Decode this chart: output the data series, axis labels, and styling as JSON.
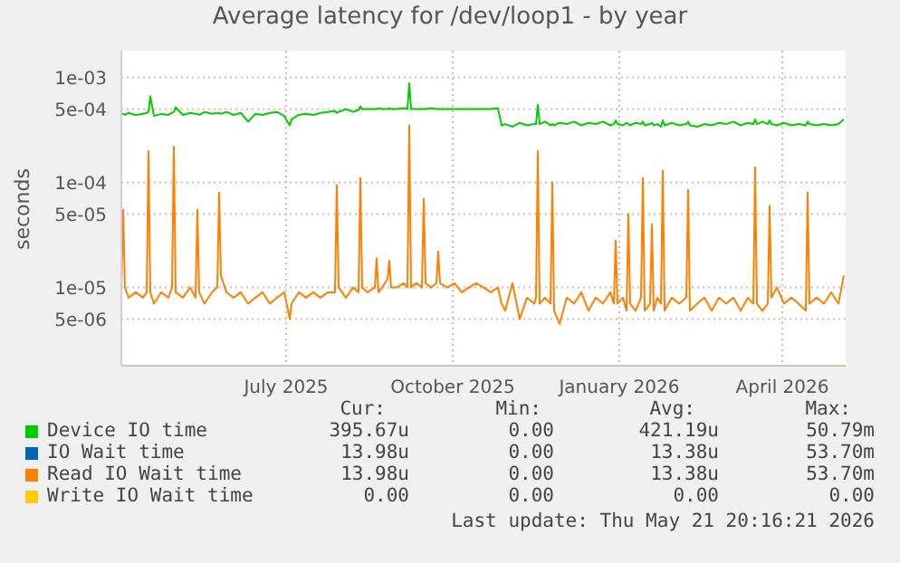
{
  "chart_data": {
    "type": "line",
    "title": "Average latency for /dev/loop1 - by year",
    "ylabel": "seconds",
    "log": "y",
    "grid": true,
    "legend": "bottom",
    "marker": "none",
    "line_style": "solid",
    "xlim": [
      "2025-04-16",
      "2026-05-21"
    ],
    "xticks": [
      {
        "value": "2025-07-16",
        "label": "July 2025"
      },
      {
        "value": "2025-10-16",
        "label": "October 2025"
      },
      {
        "value": "2026-01-16",
        "label": "January 2026"
      },
      {
        "value": "2026-04-16",
        "label": "April 2026"
      }
    ],
    "ylim": [
      1.8e-06,
      0.0018
    ],
    "yticks": [
      {
        "value": 5e-06,
        "label": "5e-06"
      },
      {
        "value": 1e-05,
        "label": "1e-05"
      },
      {
        "value": 5e-05,
        "label": "5e-05"
      },
      {
        "value": 0.0001,
        "label": "1e-04"
      },
      {
        "value": 0.0005,
        "label": "5e-04"
      },
      {
        "value": 0.001,
        "label": "1e-03"
      }
    ],
    "x": [
      "2025-04-16",
      "2025-04-17",
      "2025-04-18",
      "2025-04-20",
      "2025-04-24",
      "2025-04-28",
      "2025-04-30",
      "2025-05-01",
      "2025-05-02",
      "2025-05-04",
      "2025-05-08",
      "2025-05-12",
      "2025-05-14",
      "2025-05-15",
      "2025-05-16",
      "2025-05-20",
      "2025-05-24",
      "2025-05-27",
      "2025-05-28",
      "2025-05-29",
      "2025-06-01",
      "2025-06-05",
      "2025-06-08",
      "2025-06-09",
      "2025-06-10",
      "2025-06-13",
      "2025-06-17",
      "2025-06-21",
      "2025-06-25",
      "2025-06-29",
      "2025-07-03",
      "2025-07-07",
      "2025-07-11",
      "2025-07-15",
      "2025-07-18",
      "2025-07-19",
      "2025-07-23",
      "2025-07-27",
      "2025-07-31",
      "2025-08-04",
      "2025-08-08",
      "2025-08-12",
      "2025-08-13",
      "2025-08-14",
      "2025-08-18",
      "2025-08-22",
      "2025-08-25",
      "2025-08-26",
      "2025-08-27",
      "2025-08-30",
      "2025-09-03",
      "2025-09-04",
      "2025-09-05",
      "2025-09-07",
      "2025-09-10",
      "2025-09-11",
      "2025-09-12",
      "2025-09-15",
      "2025-09-19",
      "2025-09-21",
      "2025-09-22",
      "2025-09-23",
      "2025-09-26",
      "2025-09-29",
      "2025-09-30",
      "2025-10-01",
      "2025-10-04",
      "2025-10-07",
      "2025-10-08",
      "2025-10-09",
      "2025-10-13",
      "2025-10-17",
      "2025-10-21",
      "2025-10-25",
      "2025-10-29",
      "2025-11-02",
      "2025-11-06",
      "2025-11-10",
      "2025-11-12",
      "2025-11-14",
      "2025-11-18",
      "2025-11-22",
      "2025-11-26",
      "2025-11-30",
      "2025-12-01",
      "2025-12-02",
      "2025-12-03",
      "2025-12-06",
      "2025-12-09",
      "2025-12-10",
      "2025-12-11",
      "2025-12-14",
      "2025-12-18",
      "2025-12-22",
      "2025-12-26",
      "2025-12-30",
      "2026-01-03",
      "2026-01-07",
      "2026-01-11",
      "2026-01-13",
      "2026-01-14",
      "2026-01-15",
      "2026-01-18",
      "2026-01-20",
      "2026-01-21",
      "2026-01-22",
      "2026-01-25",
      "2026-01-28",
      "2026-01-29",
      "2026-01-30",
      "2026-02-02",
      "2026-02-03",
      "2026-02-04",
      "2026-02-06",
      "2026-02-08",
      "2026-02-09",
      "2026-02-10",
      "2026-02-14",
      "2026-02-18",
      "2026-02-22",
      "2026-02-23",
      "2026-02-24",
      "2026-02-28",
      "2026-03-04",
      "2026-03-08",
      "2026-03-12",
      "2026-03-16",
      "2026-03-20",
      "2026-03-24",
      "2026-03-28",
      "2026-03-31",
      "2026-04-01",
      "2026-04-02",
      "2026-04-05",
      "2026-04-08",
      "2026-04-09",
      "2026-04-10",
      "2026-04-13",
      "2026-04-17",
      "2026-04-21",
      "2026-04-25",
      "2026-04-29",
      "2026-04-30",
      "2026-05-01",
      "2026-05-05",
      "2026-05-09",
      "2026-05-13",
      "2026-05-17",
      "2026-05-20"
    ],
    "series": [
      {
        "name": "Device IO time",
        "color": "#00cc00",
        "values": [
          0.00045,
          0.00045,
          0.00044,
          0.00046,
          0.00044,
          0.00045,
          0.00046,
          0.00047,
          0.00066,
          0.00043,
          0.00045,
          0.00044,
          0.00046,
          0.00047,
          0.00052,
          0.00044,
          0.00046,
          0.00045,
          0.00045,
          0.00044,
          0.00047,
          0.00045,
          0.00046,
          0.00046,
          0.00045,
          0.00047,
          0.00044,
          0.00046,
          0.00038,
          0.00045,
          0.00044,
          0.00046,
          0.00047,
          0.00043,
          0.00035,
          0.0004,
          0.00044,
          0.00045,
          0.00044,
          0.00046,
          0.00047,
          0.00048,
          0.00046,
          0.00047,
          0.0005,
          0.00047,
          0.00049,
          0.00053,
          0.0005,
          0.0005,
          0.0005,
          0.0005,
          0.00051,
          0.0005,
          0.0005,
          0.00051,
          0.0005,
          0.0005,
          0.00051,
          0.0005,
          0.00088,
          0.0005,
          0.0005,
          0.0005,
          0.0005,
          0.0005,
          0.00051,
          0.0005,
          0.0005,
          0.0005,
          0.0005,
          0.0005,
          0.0005,
          0.0005,
          0.0005,
          0.0005,
          0.0005,
          0.00051,
          0.00035,
          0.00036,
          0.00034,
          0.00037,
          0.00035,
          0.00036,
          0.00036,
          0.00055,
          0.00036,
          0.00038,
          0.00035,
          0.00036,
          0.00035,
          0.00037,
          0.00036,
          0.00038,
          0.00035,
          0.00037,
          0.00036,
          0.00038,
          0.00035,
          0.00036,
          0.00039,
          0.00036,
          0.00035,
          0.00037,
          0.00036,
          0.00035,
          0.00037,
          0.00036,
          0.00038,
          0.00035,
          0.00036,
          0.00037,
          0.00035,
          0.00036,
          0.00034,
          0.00039,
          0.00035,
          0.00037,
          0.00035,
          0.00036,
          0.00038,
          0.00035,
          0.00034,
          0.00036,
          0.00035,
          0.00037,
          0.00036,
          0.00038,
          0.00035,
          0.00037,
          0.00036,
          0.0004,
          0.00036,
          0.00038,
          0.00036,
          0.00039,
          0.00036,
          0.00035,
          0.00037,
          0.00035,
          0.00036,
          0.00035,
          0.00038,
          0.00036,
          0.00035,
          0.00036,
          0.00035,
          0.00036,
          0.0004
        ]
      },
      {
        "name": "IO Wait time",
        "color": "#0066b3",
        "values": [
          null,
          null,
          null,
          null,
          null,
          null,
          null,
          null,
          null,
          null,
          null,
          null,
          null,
          null,
          null,
          null,
          null,
          null,
          null,
          null,
          null,
          null,
          null,
          null,
          null,
          null,
          null,
          null,
          null,
          null,
          null,
          null,
          null,
          null,
          null,
          null,
          null,
          null,
          null,
          null,
          null,
          null,
          null,
          null,
          null,
          null,
          null,
          null,
          null,
          null,
          null,
          null,
          null,
          null,
          null,
          null,
          null,
          null,
          null,
          null,
          null,
          null,
          null,
          null,
          null,
          null,
          null,
          null,
          null,
          null,
          null,
          null,
          null,
          null,
          null,
          null,
          null,
          null,
          null,
          null,
          null,
          null,
          null,
          null,
          null,
          null,
          null,
          null,
          null,
          null,
          null,
          null,
          null,
          null,
          null,
          null,
          null,
          null,
          null,
          null,
          null,
          null,
          null,
          null,
          null,
          null,
          null,
          null,
          null,
          null,
          null,
          null,
          null,
          null,
          null,
          null,
          null,
          null,
          null,
          null,
          null,
          null,
          null,
          null,
          null,
          null,
          null,
          null,
          null,
          null,
          null,
          null,
          null,
          null,
          null,
          null,
          null,
          null,
          null,
          null,
          null,
          null,
          null,
          null,
          null,
          null,
          null,
          null,
          null
        ]
      },
      {
        "name": "Read IO Wait time",
        "color": "#ff8000",
        "values": [
          9e-06,
          5.5e-05,
          1e-05,
          8e-06,
          9e-06,
          8e-06,
          9e-06,
          0.0002,
          9e-06,
          7e-06,
          9e-06,
          8e-06,
          1e-05,
          0.00022,
          9e-06,
          8e-06,
          1e-05,
          8e-06,
          5.5e-05,
          9e-06,
          7e-06,
          9e-06,
          1e-05,
          8e-05,
          1.3e-05,
          9e-06,
          8e-06,
          9e-06,
          7e-06,
          8e-06,
          9e-06,
          7e-06,
          8e-06,
          9e-06,
          5e-06,
          7e-06,
          9e-06,
          8e-06,
          9e-06,
          8e-06,
          9e-06,
          9e-06,
          9.5e-05,
          1e-05,
          8e-06,
          1e-05,
          9e-06,
          0.00011,
          1e-05,
          9e-06,
          1e-05,
          1.9e-05,
          9e-06,
          1e-05,
          1.2e-05,
          1.8e-05,
          1e-05,
          1e-05,
          1.1e-05,
          1e-05,
          0.00035,
          1e-05,
          1.1e-05,
          1e-05,
          7e-05,
          1.1e-05,
          1e-05,
          1.1e-05,
          2.2e-05,
          1.1e-05,
          1e-05,
          1.1e-05,
          9e-06,
          1e-05,
          1.1e-05,
          1e-05,
          9e-06,
          1e-05,
          7e-06,
          6e-06,
          1.1e-05,
          5e-06,
          8e-06,
          7e-06,
          8e-06,
          0.0002,
          7e-06,
          8e-06,
          7e-06,
          0.0001,
          6e-06,
          4.5e-06,
          8e-06,
          7e-06,
          9e-06,
          6e-06,
          8e-06,
          7e-06,
          9e-06,
          7e-06,
          2.8e-05,
          7e-06,
          8e-06,
          6e-06,
          5e-05,
          7e-06,
          6e-06,
          8e-06,
          0.00011,
          6e-06,
          7e-06,
          4e-05,
          6e-06,
          8e-06,
          7e-06,
          0.00013,
          6e-06,
          8e-06,
          7e-06,
          8e-06,
          8.5e-05,
          6e-06,
          7e-06,
          8e-06,
          6e-06,
          8e-06,
          7e-06,
          8e-06,
          6e-06,
          8e-06,
          7e-06,
          0.00014,
          7e-06,
          6e-06,
          7e-06,
          6e-05,
          8e-06,
          1e-05,
          7e-06,
          8e-06,
          7e-06,
          6e-06,
          8e-05,
          7e-06,
          8e-06,
          7e-06,
          9e-06,
          7e-06,
          1.3e-05
        ]
      },
      {
        "name": "Write IO Wait time",
        "color": "#ffcc00",
        "values": [
          null,
          null,
          null,
          null,
          null,
          null,
          null,
          null,
          null,
          null,
          null,
          null,
          null,
          null,
          null,
          null,
          null,
          null,
          null,
          null,
          null,
          null,
          null,
          null,
          null,
          null,
          null,
          null,
          null,
          null,
          null,
          null,
          null,
          null,
          null,
          null,
          null,
          null,
          null,
          null,
          null,
          null,
          null,
          null,
          null,
          null,
          null,
          null,
          null,
          null,
          null,
          null,
          null,
          null,
          null,
          null,
          null,
          null,
          null,
          null,
          null,
          null,
          null,
          null,
          null,
          null,
          null,
          null,
          null,
          null,
          null,
          null,
          null,
          null,
          null,
          null,
          null,
          null,
          null,
          null,
          null,
          null,
          null,
          null,
          null,
          null,
          null,
          null,
          null,
          null,
          null,
          null,
          null,
          null,
          null,
          null,
          null,
          null,
          null,
          null,
          null,
          null,
          null,
          null,
          null,
          null,
          null,
          null,
          null,
          null,
          null,
          null,
          null,
          null,
          null,
          null,
          null,
          null,
          null,
          null,
          null,
          null,
          null,
          null,
          null,
          null,
          null,
          null,
          null,
          null,
          null,
          null,
          null,
          null,
          null,
          null,
          null,
          null,
          null,
          null,
          null,
          null,
          null,
          null,
          null,
          null,
          null,
          null,
          null
        ]
      }
    ],
    "annotations": [
      "Cur:",
      "Min:",
      "Avg:",
      "Max:",
      "395.67u",
      "0.00",
      "421.19u",
      "50.79m",
      "13.98u",
      "0.00",
      "13.38u",
      "53.70m",
      "13.98u",
      "0.00",
      "13.38u",
      "53.70m",
      "0.00",
      "0.00",
      "0.00",
      "0.00",
      "Last update: Thu May 21 20:16:21 2026"
    ]
  }
}
